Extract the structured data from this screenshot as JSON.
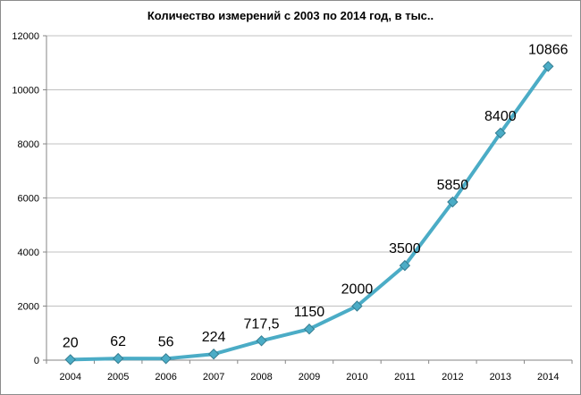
{
  "chart_data": {
    "type": "line",
    "title": "Количество измерений с 2003 по 2014 год, в тыс..",
    "xlabel": "",
    "ylabel": "",
    "categories": [
      "2004",
      "2005",
      "2006",
      "2007",
      "2008",
      "2009",
      "2010",
      "2011",
      "2012",
      "2013",
      "2014"
    ],
    "values": [
      20,
      62,
      56,
      224,
      717.5,
      1150,
      2000,
      3500,
      5850,
      8400,
      10866
    ],
    "data_labels": [
      "20",
      "62",
      "56",
      "224",
      "717,5",
      "1150",
      "2000",
      "3500",
      "5850",
      "8400",
      "10866"
    ],
    "ylim": [
      0,
      12000
    ],
    "yticks": [
      0,
      2000,
      4000,
      6000,
      8000,
      10000,
      12000
    ],
    "grid": true,
    "legend": "none",
    "marker": "diamond",
    "colors": {
      "line": "#4bacc6",
      "marker": "#4bacc6",
      "grid": "#c0c0c0",
      "axis": "#868686",
      "text": "#000000"
    }
  }
}
